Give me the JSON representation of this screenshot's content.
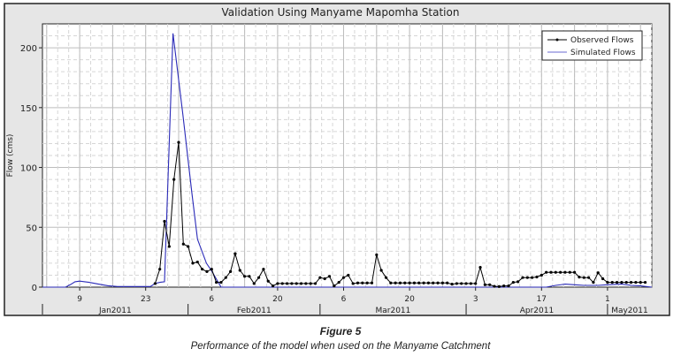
{
  "chart_data": {
    "type": "line",
    "title": "Validation Using Manyame Mapomha Station",
    "xlabel": "",
    "ylabel": "Flow (cms)",
    "x_units": "day of year 2011",
    "xlim": [
      1.1,
      130.4
    ],
    "ylim": [
      0,
      220
    ],
    "yticks": [
      0,
      50,
      100,
      150,
      200
    ],
    "xticks": [
      {
        "day": 9,
        "label": "9"
      },
      {
        "day": 23,
        "label": "23"
      },
      {
        "day": 37,
        "label": "6"
      },
      {
        "day": 51,
        "label": "20"
      },
      {
        "day": 65,
        "label": "6"
      },
      {
        "day": 79,
        "label": "20"
      },
      {
        "day": 93,
        "label": "3"
      },
      {
        "day": 107,
        "label": "17"
      },
      {
        "day": 121,
        "label": "1"
      }
    ],
    "months": [
      {
        "label": "Jan2011",
        "start": 1.1,
        "end": 32
      },
      {
        "label": "Feb2011",
        "start": 32,
        "end": 60
      },
      {
        "label": "Mar2011",
        "start": 60,
        "end": 91
      },
      {
        "label": "Apr2011",
        "start": 91,
        "end": 121
      },
      {
        "label": "May2011",
        "start": 121,
        "end": 130.4
      }
    ],
    "grid": true,
    "legend_position": "top-right",
    "series": [
      {
        "name": "Observed Flows",
        "color": "#000000",
        "markers": true,
        "points": [
          [
            25,
            3
          ],
          [
            26,
            15
          ],
          [
            27,
            55
          ],
          [
            28,
            34
          ],
          [
            29,
            90
          ],
          [
            30,
            121
          ],
          [
            31,
            36
          ],
          [
            32,
            34
          ],
          [
            33,
            20
          ],
          [
            34,
            21
          ],
          [
            35,
            15
          ],
          [
            36,
            13
          ],
          [
            37,
            15
          ],
          [
            38,
            4
          ],
          [
            39,
            4
          ],
          [
            40,
            8
          ],
          [
            41,
            13
          ],
          [
            42,
            28
          ],
          [
            43,
            14
          ],
          [
            44,
            9
          ],
          [
            45,
            9
          ],
          [
            46,
            3
          ],
          [
            47,
            8
          ],
          [
            48,
            15
          ],
          [
            49,
            5
          ],
          [
            50,
            1
          ],
          [
            51,
            3
          ],
          [
            52,
            3
          ],
          [
            53,
            3
          ],
          [
            54,
            3
          ],
          [
            55,
            3
          ],
          [
            56,
            3
          ],
          [
            57,
            3
          ],
          [
            58,
            3
          ],
          [
            59,
            3
          ],
          [
            60,
            8
          ],
          [
            61,
            7
          ],
          [
            62,
            9
          ],
          [
            63,
            1
          ],
          [
            64,
            4
          ],
          [
            65,
            8
          ],
          [
            66,
            10
          ],
          [
            67,
            3
          ],
          [
            68,
            3.5
          ],
          [
            69,
            3.5
          ],
          [
            70,
            3.5
          ],
          [
            71,
            3.5
          ],
          [
            72,
            27
          ],
          [
            73,
            14
          ],
          [
            74,
            8
          ],
          [
            75,
            3.5
          ],
          [
            76,
            3.5
          ],
          [
            77,
            3.5
          ],
          [
            78,
            3.5
          ],
          [
            79,
            3.5
          ],
          [
            80,
            3.5
          ],
          [
            81,
            3.5
          ],
          [
            82,
            3.5
          ],
          [
            83,
            3.5
          ],
          [
            84,
            3.5
          ],
          [
            85,
            3.5
          ],
          [
            86,
            3.5
          ],
          [
            87,
            3.5
          ],
          [
            88,
            2.5
          ],
          [
            89,
            3
          ],
          [
            90,
            3
          ],
          [
            91,
            3
          ],
          [
            92,
            3
          ],
          [
            93,
            3
          ],
          [
            94,
            16.5
          ],
          [
            95,
            2
          ],
          [
            96,
            2
          ],
          [
            97,
            0.7
          ],
          [
            98,
            0.5
          ],
          [
            99,
            1
          ],
          [
            100,
            1
          ],
          [
            101,
            4
          ],
          [
            102,
            4.5
          ],
          [
            103,
            8
          ],
          [
            104,
            8
          ],
          [
            105,
            8
          ],
          [
            106,
            8.5
          ],
          [
            107,
            10
          ],
          [
            108,
            12.4
          ],
          [
            109,
            12.4
          ],
          [
            110,
            12.4
          ],
          [
            111,
            12.4
          ],
          [
            112,
            12.4
          ],
          [
            113,
            12.4
          ],
          [
            114,
            12.4
          ],
          [
            115,
            8.4
          ],
          [
            116,
            8
          ],
          [
            117,
            8
          ],
          [
            118,
            4
          ],
          [
            119,
            12
          ],
          [
            120,
            7
          ],
          [
            121,
            4
          ],
          [
            122,
            4
          ],
          [
            123,
            4
          ],
          [
            124,
            4
          ],
          [
            125,
            4
          ],
          [
            126,
            4
          ],
          [
            127,
            4
          ],
          [
            128,
            4
          ],
          [
            129,
            4
          ]
        ]
      },
      {
        "name": "Simulated Flows",
        "color": "#2a2ab8",
        "markers": false,
        "points": [
          [
            1.1,
            0
          ],
          [
            6,
            0
          ],
          [
            7,
            2
          ],
          [
            8,
            4.5
          ],
          [
            9,
            5
          ],
          [
            11,
            4
          ],
          [
            13,
            2.5
          ],
          [
            15,
            1.2
          ],
          [
            17,
            0.5
          ],
          [
            24,
            0.5
          ],
          [
            25,
            3
          ],
          [
            26,
            4
          ],
          [
            27,
            4.5
          ],
          [
            28.8,
            212
          ],
          [
            30.9,
            144
          ],
          [
            32.8,
            79
          ],
          [
            34,
            40
          ],
          [
            35.9,
            20
          ],
          [
            37.1,
            13
          ],
          [
            38.4,
            4
          ],
          [
            39,
            0
          ],
          [
            108,
            0
          ],
          [
            110,
            1.5
          ],
          [
            112,
            2.5
          ],
          [
            114,
            2
          ],
          [
            116,
            1.5
          ],
          [
            119,
            1.5
          ],
          [
            121,
            2
          ],
          [
            124,
            2.5
          ],
          [
            126,
            1.5
          ],
          [
            128,
            1
          ],
          [
            130.4,
            0
          ]
        ]
      }
    ]
  },
  "caption": {
    "figure": "Figure 5",
    "text": "Performance of the model when used on the Manyame Catchment"
  }
}
